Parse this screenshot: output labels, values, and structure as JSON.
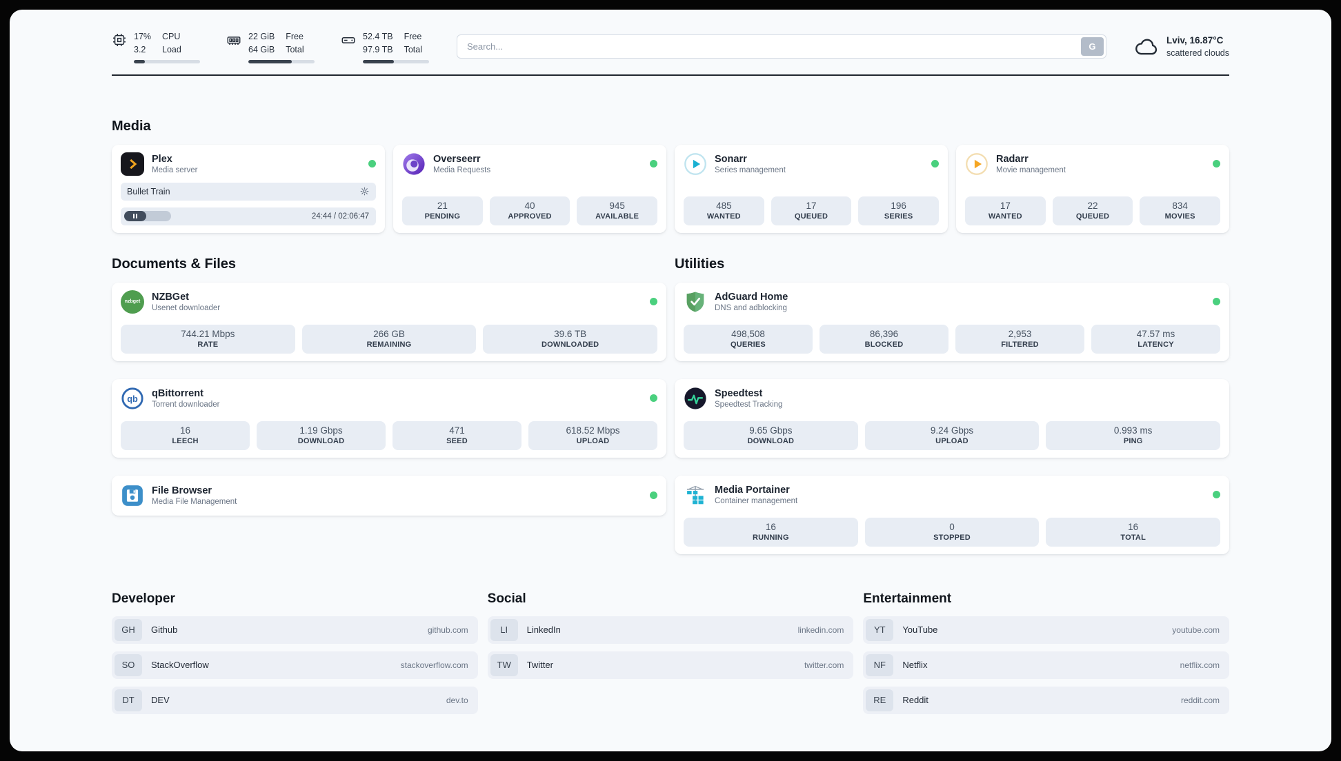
{
  "header": {
    "cpu": {
      "value1": "17%",
      "value2": "3.2",
      "label1": "CPU",
      "label2": "Load",
      "bar_percent": 17
    },
    "ram": {
      "value1": "22 GiB",
      "value2": "64 GiB",
      "label1": "Free",
      "label2": "Total",
      "bar_percent": 66
    },
    "disk": {
      "value1": "52.4 TB",
      "value2": "97.9 TB",
      "label1": "Free",
      "label2": "Total",
      "bar_percent": 47
    },
    "search": {
      "placeholder": "Search...",
      "engine_button": "G"
    },
    "weather": {
      "location_temp": "Lviv, 16.87°C",
      "condition": "scattered clouds"
    }
  },
  "sections": {
    "media": "Media",
    "documents": "Documents & Files",
    "utilities": "Utilities"
  },
  "apps": {
    "plex": {
      "name": "Plex",
      "sub": "Media server",
      "online": true,
      "now_playing": "Bullet Train",
      "time": "24:44 / 02:06:47",
      "progress_percent": 19
    },
    "overseerr": {
      "name": "Overseerr",
      "sub": "Media Requests",
      "online": true,
      "stats": [
        {
          "value": "21",
          "label": "PENDING"
        },
        {
          "value": "40",
          "label": "APPROVED"
        },
        {
          "value": "945",
          "label": "AVAILABLE"
        }
      ]
    },
    "sonarr": {
      "name": "Sonarr",
      "sub": "Series management",
      "online": true,
      "stats": [
        {
          "value": "485",
          "label": "WANTED"
        },
        {
          "value": "17",
          "label": "QUEUED"
        },
        {
          "value": "196",
          "label": "SERIES"
        }
      ]
    },
    "radarr": {
      "name": "Radarr",
      "sub": "Movie management",
      "online": true,
      "stats": [
        {
          "value": "17",
          "label": "WANTED"
        },
        {
          "value": "22",
          "label": "QUEUED"
        },
        {
          "value": "834",
          "label": "MOVIES"
        }
      ]
    },
    "nzbget": {
      "name": "NZBGet",
      "sub": "Usenet downloader",
      "online": true,
      "icon_text": "nzbget",
      "stats": [
        {
          "value": "744.21 Mbps",
          "label": "RATE"
        },
        {
          "value": "266 GB",
          "label": "REMAINING"
        },
        {
          "value": "39.6 TB",
          "label": "DOWNLOADED"
        }
      ]
    },
    "qbittorrent": {
      "name": "qBittorrent",
      "sub": "Torrent downloader",
      "online": true,
      "stats": [
        {
          "value": "16",
          "label": "LEECH"
        },
        {
          "value": "1.19 Gbps",
          "label": "DOWNLOAD"
        },
        {
          "value": "471",
          "label": "SEED"
        },
        {
          "value": "618.52 Mbps",
          "label": "UPLOAD"
        }
      ]
    },
    "filebrowser": {
      "name": "File Browser",
      "sub": "Media File Management",
      "online": true
    },
    "adguard": {
      "name": "AdGuard Home",
      "sub": "DNS and adblocking",
      "online": true,
      "stats": [
        {
          "value": "498,508",
          "label": "QUERIES"
        },
        {
          "value": "86,396",
          "label": "BLOCKED"
        },
        {
          "value": "2,953",
          "label": "FILTERED"
        },
        {
          "value": "47.57 ms",
          "label": "LATENCY"
        }
      ]
    },
    "speedtest": {
      "name": "Speedtest",
      "sub": "Speedtest Tracking",
      "stats": [
        {
          "value": "9.65 Gbps",
          "label": "DOWNLOAD"
        },
        {
          "value": "9.24 Gbps",
          "label": "UPLOAD"
        },
        {
          "value": "0.993 ms",
          "label": "PING"
        }
      ]
    },
    "portainer": {
      "name": "Media Portainer",
      "sub": "Container management",
      "online": true,
      "stats": [
        {
          "value": "16",
          "label": "RUNNING"
        },
        {
          "value": "0",
          "label": "STOPPED"
        },
        {
          "value": "16",
          "label": "TOTAL"
        }
      ]
    }
  },
  "bookmarks": {
    "developer": {
      "title": "Developer",
      "items": [
        {
          "abbr": "GH",
          "name": "Github",
          "url": "github.com"
        },
        {
          "abbr": "SO",
          "name": "StackOverflow",
          "url": "stackoverflow.com"
        },
        {
          "abbr": "DT",
          "name": "DEV",
          "url": "dev.to"
        }
      ]
    },
    "social": {
      "title": "Social",
      "items": [
        {
          "abbr": "LI",
          "name": "LinkedIn",
          "url": "linkedin.com"
        },
        {
          "abbr": "TW",
          "name": "Twitter",
          "url": "twitter.com"
        }
      ]
    },
    "entertainment": {
      "title": "Entertainment",
      "items": [
        {
          "abbr": "YT",
          "name": "YouTube",
          "url": "youtube.com"
        },
        {
          "abbr": "NF",
          "name": "Netflix",
          "url": "netflix.com"
        },
        {
          "abbr": "RE",
          "name": "Reddit",
          "url": "reddit.com"
        }
      ]
    }
  },
  "colors": {
    "online_green": "#4ad07e",
    "stat_box": "#e8edf4",
    "page_bg": "#f8fafc"
  }
}
